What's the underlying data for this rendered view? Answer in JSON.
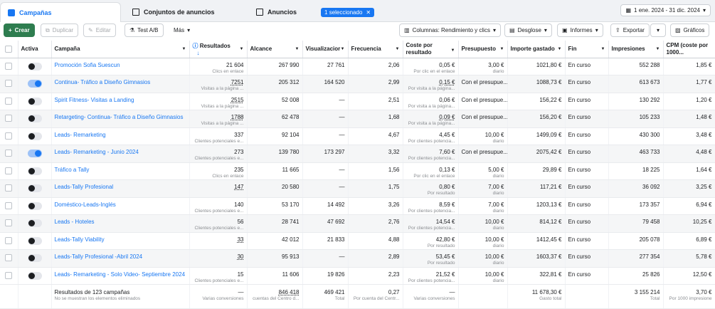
{
  "tabs": {
    "campaigns": "Campañas",
    "adsets": "Conjuntos de anuncios",
    "ads": "Anuncios",
    "selected": "1 seleccionado"
  },
  "date_range": "1 ene. 2024 - 31 dic. 2024",
  "toolbar": {
    "create": "Crear",
    "duplicate": "Duplicar",
    "edit": "Editar",
    "ab": "Test A/B",
    "more": "Más",
    "columns": "Columnas: Rendimiento y clics",
    "breakdown": "Desglose",
    "reports": "Informes",
    "export": "Exportar",
    "charts": "Gráficos"
  },
  "headers": {
    "active": "Activa",
    "campaign": "Campaña",
    "results": "Resultados",
    "reach": "Alcance",
    "views": "Visualizacior",
    "frequency": "Frecuencia",
    "cost_per_result": "Coste por resultado",
    "budget": "Presupuesto",
    "amount_spent": "Importe gastado",
    "end": "Fin",
    "impressions": "Impresiones",
    "cpm": "CPM (coste por 1000..."
  },
  "rows": [
    {
      "on": false,
      "name": "Promoción Sofia Suescun",
      "res": "21 604",
      "res_sub": "Clics en enlace",
      "reach": "267 990",
      "views": "27 761",
      "freq": "2,06",
      "cpr": "0,05 €",
      "cpr_sub": "Por clic en el enlace",
      "budget": "3,00 €",
      "budget_sub": "diario",
      "spent": "1021,80 €",
      "end": "En curso",
      "impr": "552 288",
      "cpm": "1,85 €"
    },
    {
      "on": true,
      "name": "Continua- Tráfico a Diseño Gimnasios",
      "res": "7251",
      "res_sub": "Visitas a la página ...",
      "reach": "205 312",
      "views": "164 520",
      "freq": "2,99",
      "cpr": "0,15 €",
      "cpr_sub": "Por visita a la página...",
      "budget": "Con el presupue...",
      "budget_sub": "",
      "spent": "1088,73 €",
      "end": "En curso",
      "impr": "613 673",
      "cpm": "1,77 €"
    },
    {
      "on": false,
      "name": "Spirit Fitness- Visitas a Landing",
      "res": "2515",
      "res_sub": "Visitas a la página ...",
      "reach": "52 008",
      "views": "—",
      "freq": "2,51",
      "cpr": "0,06 €",
      "cpr_sub": "Por visita a la página...",
      "budget": "Con el presupue...",
      "budget_sub": "",
      "spent": "156,22 €",
      "end": "En curso",
      "impr": "130 292",
      "cpm": "1,20 €"
    },
    {
      "on": false,
      "name": "Retargeting- Continua- Tráfico a Diseño Gimnasios",
      "res": "1788",
      "res_sub": "Visitas a la página ...",
      "reach": "62 478",
      "views": "—",
      "freq": "1,68",
      "cpr": "0,09 €",
      "cpr_sub": "Por visita a la página...",
      "budget": "Con el presupue...",
      "budget_sub": "",
      "spent": "156,20 €",
      "end": "En curso",
      "impr": "105 233",
      "cpm": "1,48 €"
    },
    {
      "on": false,
      "name": "Leads- Remarketing",
      "res": "337",
      "res_sub": "Clientes potenciales e...",
      "reach": "92 104",
      "views": "—",
      "freq": "4,67",
      "cpr": "4,45 €",
      "cpr_sub": "Por clientes potencia...",
      "budget": "10,00 €",
      "budget_sub": "diario",
      "spent": "1499,09 €",
      "end": "En curso",
      "impr": "430 300",
      "cpm": "3,48 €"
    },
    {
      "on": true,
      "name": "Leads- Remarketing - Junio 2024",
      "res": "273",
      "res_sub": "Clientes potenciales e...",
      "reach": "139 780",
      "views": "173 297",
      "freq": "3,32",
      "cpr": "7,60 €",
      "cpr_sub": "Por clientes potencia...",
      "budget": "Con el presupue...",
      "budget_sub": "",
      "spent": "2075,42 €",
      "end": "En curso",
      "impr": "463 733",
      "cpm": "4,48 €"
    },
    {
      "on": false,
      "name": "Tráfico a Tally",
      "res": "235",
      "res_sub": "Clics en enlace",
      "reach": "11 665",
      "views": "—",
      "freq": "1,56",
      "cpr": "0,13 €",
      "cpr_sub": "Por clic en el enlace",
      "budget": "5,00 €",
      "budget_sub": "diario",
      "spent": "29,89 €",
      "end": "En curso",
      "impr": "18 225",
      "cpm": "1,64 €"
    },
    {
      "on": false,
      "name": "Leads-Tally Profesional",
      "res": "147",
      "res_sub": "",
      "reach": "20 580",
      "views": "—",
      "freq": "1,75",
      "cpr": "0,80 €",
      "cpr_sub": "Por resultado",
      "budget": "7,00 €",
      "budget_sub": "diario",
      "spent": "117,21 €",
      "end": "En curso",
      "impr": "36 092",
      "cpm": "3,25 €"
    },
    {
      "on": false,
      "name": "Doméstico-Leads-Inglés",
      "res": "140",
      "res_sub": "Clientes potenciales e...",
      "reach": "53 170",
      "views": "14 492",
      "freq": "3,26",
      "cpr": "8,59 €",
      "cpr_sub": "Por clientes potencia...",
      "budget": "7,00 €",
      "budget_sub": "diario",
      "spent": "1203,13 €",
      "end": "En curso",
      "impr": "173 357",
      "cpm": "6,94 €"
    },
    {
      "on": false,
      "name": "Leads - Hoteles",
      "res": "56",
      "res_sub": "Clientes potenciales e...",
      "reach": "28 741",
      "views": "47 692",
      "freq": "2,76",
      "cpr": "14,54 €",
      "cpr_sub": "Por clientes potencia...",
      "budget": "10,00 €",
      "budget_sub": "diario",
      "spent": "814,12 €",
      "end": "En curso",
      "impr": "79 458",
      "cpm": "10,25 €"
    },
    {
      "on": false,
      "name": "Leads-Tally Viability",
      "res": "33",
      "res_sub": "",
      "reach": "42 012",
      "views": "21 833",
      "freq": "4,88",
      "cpr": "42,80 €",
      "cpr_sub": "Por resultado",
      "budget": "10,00 €",
      "budget_sub": "diario",
      "spent": "1412,45 €",
      "end": "En curso",
      "impr": "205 078",
      "cpm": "6,89 €"
    },
    {
      "on": false,
      "name": "Leads-Tally Profesional -Abril 2024",
      "res": "30",
      "res_sub": "",
      "reach": "95 913",
      "views": "—",
      "freq": "2,89",
      "cpr": "53,45 €",
      "cpr_sub": "Por resultado",
      "budget": "10,00 €",
      "budget_sub": "diario",
      "spent": "1603,37 €",
      "end": "En curso",
      "impr": "277 354",
      "cpm": "5,78 €"
    },
    {
      "on": false,
      "name": "Leads- Remarketing - Solo Video- Septiembre 2024",
      "res": "15",
      "res_sub": "Clientes potenciales e...",
      "reach": "11 606",
      "views": "19 826",
      "freq": "2,23",
      "cpr": "21,52 €",
      "cpr_sub": "Por clientes potencia...",
      "budget": "10,00 €",
      "budget_sub": "diario",
      "spent": "322,81 €",
      "end": "En curso",
      "impr": "25 826",
      "cpm": "12,50 €"
    }
  ],
  "totals": {
    "label": "Resultados de 123 campañas",
    "note": "No se muestran los elementos eliminados",
    "res": "—",
    "res_sub": "Varias conversiones",
    "reach": "846 418",
    "reach_sub": "cuentas del Centro d...",
    "views": "469 421",
    "views_sub": "Total",
    "freq": "0,27",
    "freq_sub": "Por cuenta del Centr...",
    "cpr": "—",
    "cpr_sub": "Varias conversiones",
    "spent": "11 678,30 €",
    "spent_sub": "Gasto total",
    "impr": "3 155 214",
    "impr_sub": "Total",
    "cpm": "3,70 €",
    "cpm_sub": "Por 1000 impresione"
  }
}
